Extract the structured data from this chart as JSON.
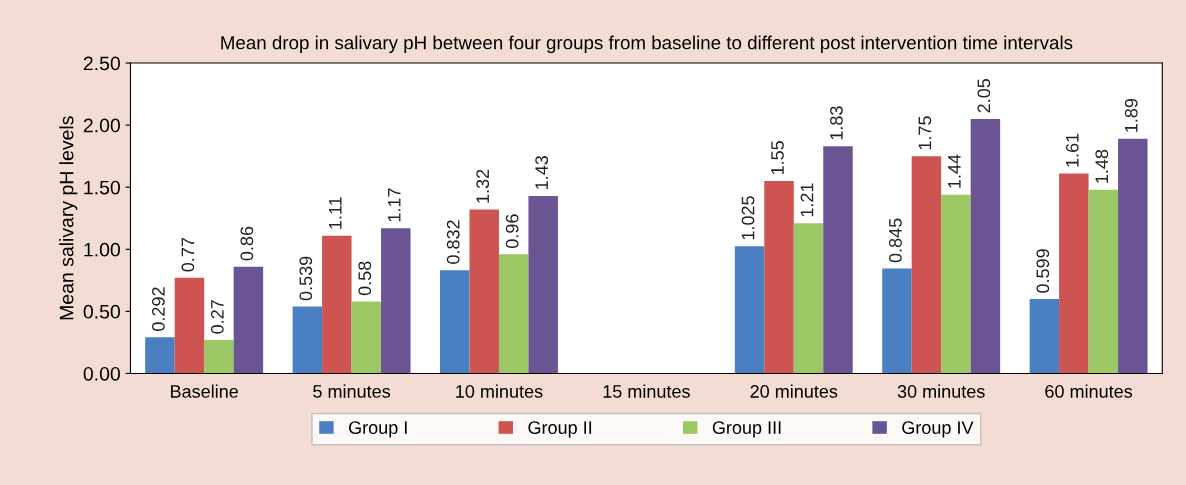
{
  "chart_data": {
    "type": "bar",
    "title": "Mean drop in salivary pH between four groups from baseline to different post intervention time intervals",
    "ylabel": "Mean salivary pH levels",
    "categories": [
      "Baseline",
      "5 minutes",
      "10 minutes",
      "15 minutes",
      "20 minutes",
      "30 minutes",
      "60 minutes"
    ],
    "series": [
      {
        "name": "Group I",
        "color": "#4a7fc1",
        "values": [
          0.292,
          0.539,
          0.832,
          null,
          1.025,
          0.845,
          0.599
        ]
      },
      {
        "name": "Group II",
        "color": "#cd5450",
        "values": [
          0.77,
          1.11,
          1.32,
          null,
          1.55,
          1.75,
          1.61
        ]
      },
      {
        "name": "Group III",
        "color": "#9bc865",
        "values": [
          0.27,
          0.58,
          0.96,
          null,
          1.21,
          1.44,
          1.48
        ]
      },
      {
        "name": "Group IV",
        "color": "#6a5494",
        "values": [
          0.86,
          1.17,
          1.43,
          null,
          1.83,
          2.05,
          1.89
        ]
      }
    ],
    "ylim": [
      0,
      2.5
    ],
    "yticks": [
      {
        "value": 0,
        "label": "0.00"
      },
      {
        "value": 0.5,
        "label": "0.50"
      },
      {
        "value": 1,
        "label": "1.00"
      },
      {
        "value": 1.5,
        "label": "1.50"
      },
      {
        "value": 2,
        "label": "2.00"
      },
      {
        "value": 2.5,
        "label": "2.50"
      }
    ],
    "data_labels": true,
    "grid": false,
    "legend": "bottom"
  }
}
